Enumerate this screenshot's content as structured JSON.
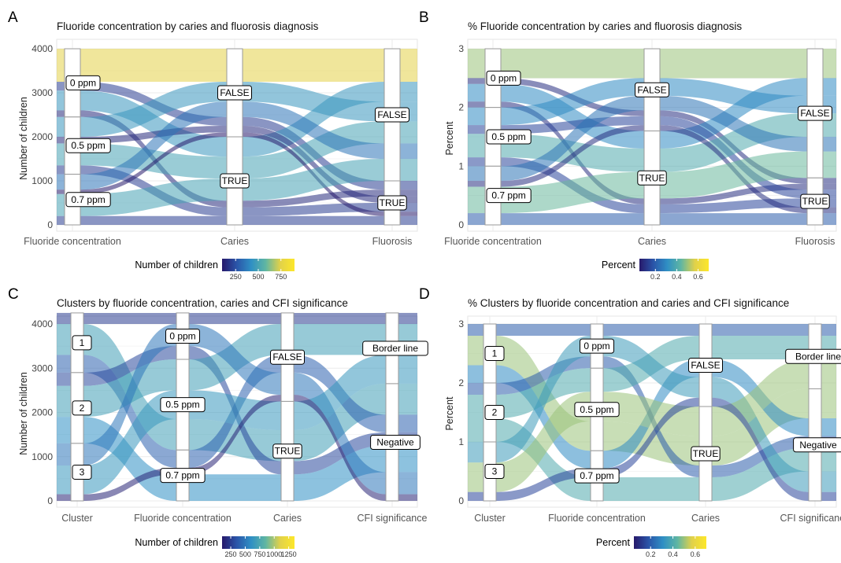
{
  "panels": [
    {
      "letter": "A",
      "title": "Fluoride concentration by caries and fluorosis diagnosis",
      "ylabel": "Number of children",
      "axes": [
        "Fluoride concentration",
        "Caries",
        "Fluorosis"
      ],
      "yticks": [
        "0",
        "1000",
        "2000",
        "3000",
        "4000"
      ],
      "legend": {
        "title": "Number of children",
        "ticks": [
          "250",
          "500",
          "750"
        ]
      }
    },
    {
      "letter": "B",
      "title": "% Fluoride concentration by caries and fluorosis diagnosis",
      "ylabel": "Percent",
      "axes": [
        "Fluoride concentration",
        "Caries",
        "Fluorosis"
      ],
      "yticks": [
        "0",
        "1",
        "2",
        "3"
      ],
      "legend": {
        "title": "Percent",
        "ticks": [
          "0.2",
          "0.4",
          "0.6"
        ]
      }
    },
    {
      "letter": "C",
      "title": "Clusters by fluoride concentration, caries and CFI significance",
      "ylabel": "Number of children",
      "axes": [
        "Cluster",
        "Fluoride concentration",
        "Caries",
        "CFI significance"
      ],
      "yticks": [
        "0",
        "1000",
        "2000",
        "3000",
        "4000"
      ],
      "legend": {
        "title": "Number of children",
        "ticks": [
          "250",
          "500",
          "750",
          "1000",
          "1250"
        ]
      }
    },
    {
      "letter": "D",
      "title": "% Clusters by fluoride concentration and caries and CFI significance",
      "ylabel": "Percent",
      "axes": [
        "Cluster",
        "Fluoride concentration",
        "Caries",
        "CFI significance"
      ],
      "yticks": [
        "0",
        "1",
        "2",
        "3"
      ],
      "legend": {
        "title": "Percent",
        "ticks": [
          "0.2",
          "0.4",
          "0.6"
        ]
      }
    }
  ],
  "chart_data": [
    {
      "type": "alluvial",
      "title": "Fluoride concentration by caries and fluorosis diagnosis",
      "ylabel": "Number of children",
      "ylim": [
        0,
        4000
      ],
      "axes": [
        "Fluoride concentration",
        "Caries",
        "Fluorosis"
      ],
      "strata": [
        [
          "0 ppm",
          "0.5 ppm",
          "0.7 ppm"
        ],
        [
          "FALSE",
          "TRUE"
        ],
        [
          "FALSE",
          "TRUE"
        ]
      ],
      "stratum_values": [
        [
          1550,
          1300,
          1150
        ],
        [
          2000,
          2000
        ],
        [
          3000,
          1000
        ]
      ],
      "flows": [
        {
          "values": [
            "0 ppm",
            "FALSE",
            "FALSE"
          ],
          "count": 750
        },
        {
          "values": [
            "0 ppm",
            "FALSE",
            "TRUE"
          ],
          "count": 200
        },
        {
          "values": [
            "0 ppm",
            "TRUE",
            "FALSE"
          ],
          "count": 450
        },
        {
          "values": [
            "0 ppm",
            "TRUE",
            "TRUE"
          ],
          "count": 150
        },
        {
          "values": [
            "0.5 ppm",
            "FALSE",
            "FALSE"
          ],
          "count": 450
        },
        {
          "values": [
            "0.5 ppm",
            "FALSE",
            "TRUE"
          ],
          "count": 150
        },
        {
          "values": [
            "0.5 ppm",
            "TRUE",
            "FALSE"
          ],
          "count": 500
        },
        {
          "values": [
            "0.5 ppm",
            "TRUE",
            "TRUE"
          ],
          "count": 200
        },
        {
          "values": [
            "0.7 ppm",
            "FALSE",
            "FALSE"
          ],
          "count": 350
        },
        {
          "values": [
            "0.7 ppm",
            "FALSE",
            "TRUE"
          ],
          "count": 100
        },
        {
          "values": [
            "0.7 ppm",
            "TRUE",
            "FALSE"
          ],
          "count": 500
        },
        {
          "values": [
            "0.7 ppm",
            "TRUE",
            "TRUE"
          ],
          "count": 200
        }
      ],
      "legend": {
        "title": "Number of children",
        "range": [
          100,
          900
        ],
        "ticks": [
          250,
          500,
          750
        ]
      }
    },
    {
      "type": "alluvial",
      "title": "% Fluoride concentration by caries and fluorosis diagnosis",
      "ylabel": "Percent",
      "ylim": [
        0,
        3
      ],
      "axes": [
        "Fluoride concentration",
        "Caries",
        "Fluorosis"
      ],
      "strata": [
        [
          "0 ppm",
          "0.5 ppm",
          "0.7 ppm"
        ],
        [
          "FALSE",
          "TRUE"
        ],
        [
          "FALSE",
          "TRUE"
        ]
      ],
      "stratum_values": [
        [
          1,
          1,
          1
        ],
        [
          1.4,
          1.6
        ],
        [
          2.2,
          0.8
        ]
      ],
      "flows": [
        {
          "values": [
            "0 ppm",
            "FALSE",
            "FALSE"
          ],
          "count": 0.5
        },
        {
          "values": [
            "0 ppm",
            "FALSE",
            "TRUE"
          ],
          "count": 0.1
        },
        {
          "values": [
            "0 ppm",
            "TRUE",
            "FALSE"
          ],
          "count": 0.3
        },
        {
          "values": [
            "0 ppm",
            "TRUE",
            "TRUE"
          ],
          "count": 0.1
        },
        {
          "values": [
            "0.5 ppm",
            "FALSE",
            "FALSE"
          ],
          "count": 0.3
        },
        {
          "values": [
            "0.5 ppm",
            "FALSE",
            "TRUE"
          ],
          "count": 0.15
        },
        {
          "values": [
            "0.5 ppm",
            "TRUE",
            "FALSE"
          ],
          "count": 0.4
        },
        {
          "values": [
            "0.5 ppm",
            "TRUE",
            "TRUE"
          ],
          "count": 0.15
        },
        {
          "values": [
            "0.7 ppm",
            "FALSE",
            "FALSE"
          ],
          "count": 0.25
        },
        {
          "values": [
            "0.7 ppm",
            "FALSE",
            "TRUE"
          ],
          "count": 0.1
        },
        {
          "values": [
            "0.7 ppm",
            "TRUE",
            "FALSE"
          ],
          "count": 0.45
        },
        {
          "values": [
            "0.7 ppm",
            "TRUE",
            "TRUE"
          ],
          "count": 0.2
        }
      ],
      "legend": {
        "title": "Percent",
        "range": [
          0.05,
          0.7
        ],
        "ticks": [
          0.2,
          0.4,
          0.6
        ]
      }
    },
    {
      "type": "alluvial",
      "title": "Clusters by fluoride concentration, caries and CFI significance",
      "ylabel": "Number of children",
      "ylim": [
        0,
        4000
      ],
      "axes": [
        "Cluster",
        "Fluoride concentration",
        "Caries",
        "CFI significance"
      ],
      "strata": [
        [
          "1",
          "2",
          "3"
        ],
        [
          "0 ppm",
          "0.5 ppm",
          "0.7 ppm"
        ],
        [
          "FALSE",
          "TRUE"
        ],
        [
          "Border line",
          "Negative"
        ]
      ],
      "stratum_values": [
        [
          1350,
          1600,
          1300
        ],
        [
          1050,
          2050,
          1150
        ],
        [
          2150,
          2100
        ],
        [
          1550,
          2700
        ]
      ],
      "flows": [
        {
          "values": [
            "1",
            "0 ppm",
            "FALSE",
            "Border line"
          ],
          "count": 250
        },
        {
          "values": [
            "1",
            "0.5 ppm",
            "TRUE",
            "Negative"
          ],
          "count": 700
        },
        {
          "values": [
            "1",
            "0.7 ppm",
            "FALSE",
            "Negative"
          ],
          "count": 400
        },
        {
          "values": [
            "2",
            "0 ppm",
            "TRUE",
            "Negative"
          ],
          "count": 300
        },
        {
          "values": [
            "2",
            "0.5 ppm",
            "FALSE",
            "Border line"
          ],
          "count": 700
        },
        {
          "values": [
            "2",
            "0.7 ppm",
            "TRUE",
            "Negative"
          ],
          "count": 600
        },
        {
          "values": [
            "3",
            "0 ppm",
            "FALSE",
            "Negative"
          ],
          "count": 500
        },
        {
          "values": [
            "3",
            "0.5 ppm",
            "TRUE",
            "Border line"
          ],
          "count": 650
        },
        {
          "values": [
            "3",
            "0.7 ppm",
            "FALSE",
            "Negative"
          ],
          "count": 150
        }
      ],
      "legend": {
        "title": "Number of children",
        "range": [
          100,
          1350
        ],
        "ticks": [
          250,
          500,
          750,
          1000,
          1250
        ]
      }
    },
    {
      "type": "alluvial",
      "title": "% Clusters by fluoride concentration and caries and CFI significance",
      "ylabel": "Percent",
      "ylim": [
        0,
        3
      ],
      "axes": [
        "Cluster",
        "Fluoride concentration",
        "Caries",
        "CFI significance"
      ],
      "strata": [
        [
          "1",
          "2",
          "3"
        ],
        [
          "0 ppm",
          "0.5 ppm",
          "0.7 ppm"
        ],
        [
          "FALSE",
          "TRUE"
        ],
        [
          "Border line",
          "Negative"
        ]
      ],
      "stratum_values": [
        [
          1,
          1,
          1
        ],
        [
          0.75,
          1.35,
          0.9
        ],
        [
          1.5,
          1.5
        ],
        [
          1.1,
          1.9
        ]
      ],
      "flows": [
        {
          "values": [
            "1",
            "0 ppm",
            "FALSE",
            "Border line"
          ],
          "count": 0.2
        },
        {
          "values": [
            "1",
            "0.5 ppm",
            "TRUE",
            "Negative"
          ],
          "count": 0.5
        },
        {
          "values": [
            "1",
            "0.7 ppm",
            "FALSE",
            "Negative"
          ],
          "count": 0.3
        },
        {
          "values": [
            "2",
            "0 ppm",
            "TRUE",
            "Negative"
          ],
          "count": 0.2
        },
        {
          "values": [
            "2",
            "0.5 ppm",
            "FALSE",
            "Border line"
          ],
          "count": 0.4
        },
        {
          "values": [
            "2",
            "0.7 ppm",
            "TRUE",
            "Negative"
          ],
          "count": 0.4
        },
        {
          "values": [
            "3",
            "0 ppm",
            "FALSE",
            "Negative"
          ],
          "count": 0.35
        },
        {
          "values": [
            "3",
            "0.5 ppm",
            "TRUE",
            "Border line"
          ],
          "count": 0.5
        },
        {
          "values": [
            "3",
            "0.7 ppm",
            "FALSE",
            "Negative"
          ],
          "count": 0.15
        }
      ],
      "legend": {
        "title": "Percent",
        "range": [
          0.05,
          0.7
        ],
        "ticks": [
          0.2,
          0.4,
          0.6
        ]
      }
    }
  ]
}
